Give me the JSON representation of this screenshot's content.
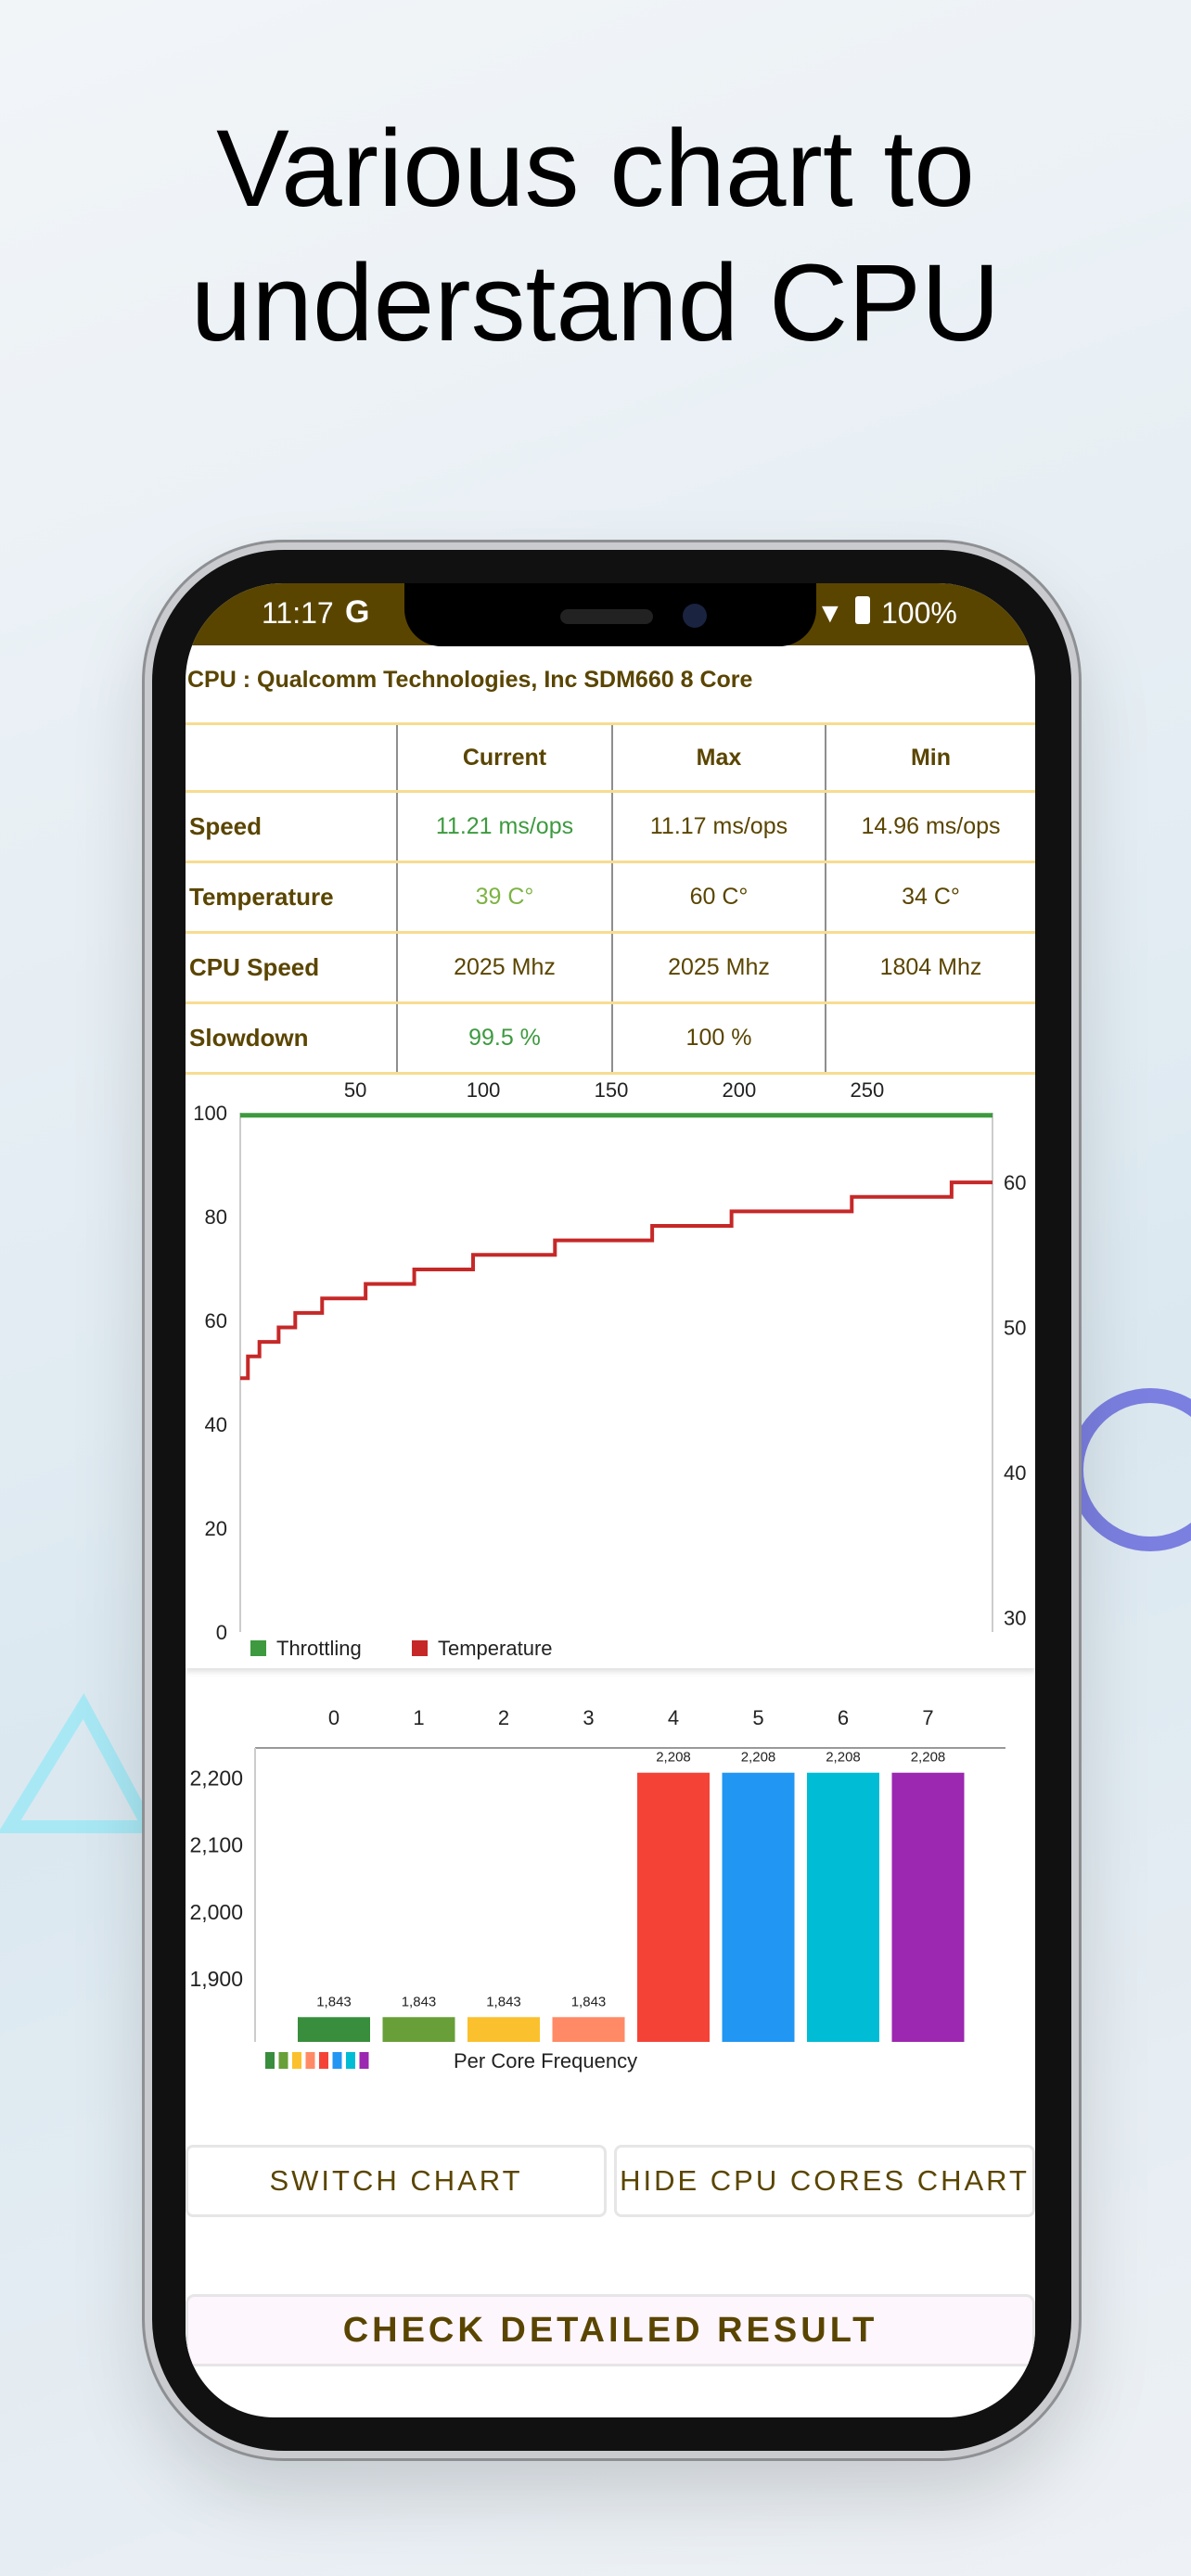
{
  "headline": {
    "line1": "Various chart to",
    "line2": "understand CPU"
  },
  "status_bar": {
    "time": "11:17",
    "google_icon": "G",
    "battery": "100%",
    "icons": [
      "wifi-icon",
      "battery-charging-icon"
    ]
  },
  "cpu_title": "CPU : Qualcomm Technologies, Inc SDM660 8 Core",
  "table": {
    "headers": [
      "",
      "Current",
      "Max",
      "Min"
    ],
    "rows": [
      {
        "label": "Speed",
        "current": "11.21 ms/ops",
        "max": "11.17 ms/ops",
        "min": "14.96 ms/ops"
      },
      {
        "label": "Temperature",
        "current": "39 C°",
        "max": "60 C°",
        "min": "34 C°"
      },
      {
        "label": "CPU Speed",
        "current": "2025 Mhz",
        "max": "2025 Mhz",
        "min": "1804 Mhz"
      },
      {
        "label": "Slowdown",
        "current": "99.5 %",
        "max": "100 %",
        "min": ""
      }
    ],
    "colors": {
      "text": "#5a4500",
      "good": "#3d9a3f",
      "temp_current": "#7cb342",
      "border": "#f7dc91"
    }
  },
  "chart_data": [
    {
      "type": "line",
      "x_ticks": [
        "50",
        "100",
        "150",
        "200",
        "250"
      ],
      "x_tick_values": [
        50,
        100,
        150,
        200,
        250
      ],
      "xlim": [
        5,
        299
      ],
      "y_left_ticks": [
        "0",
        "20",
        "40",
        "60",
        "80",
        "100"
      ],
      "ylim_left": [
        0,
        100
      ],
      "y_right_ticks": [
        "30",
        "40",
        "50",
        "60"
      ],
      "ylim_right": [
        29,
        64.8
      ],
      "grid": false,
      "legend": "bottom-left",
      "series": [
        {
          "name": "Throttling",
          "axis": "left",
          "color": "#3d9a3f",
          "points": [
            [
              5,
              99.5
            ],
            [
              299,
              99.5
            ]
          ]
        },
        {
          "name": "Temperature",
          "axis": "right",
          "color": "#c62828",
          "step": true,
          "points": [
            [
              5,
              46.5
            ],
            [
              8,
              48
            ],
            [
              12.5,
              49
            ],
            [
              20,
              50
            ],
            [
              26.5,
              51
            ],
            [
              37,
              52
            ],
            [
              54,
              53
            ],
            [
              73,
              54
            ],
            [
              96,
              55
            ],
            [
              128,
              56
            ],
            [
              166,
              57
            ],
            [
              197,
              58
            ],
            [
              244,
              59
            ],
            [
              283,
              60
            ],
            [
              299,
              60
            ]
          ]
        }
      ]
    },
    {
      "type": "bar",
      "categories": [
        "0",
        "1",
        "2",
        "3",
        "4",
        "5",
        "6",
        "7"
      ],
      "values": [
        1843,
        1843,
        1843,
        1843,
        2208,
        2208,
        2208,
        2208
      ],
      "data_labels": [
        "1,843",
        "1,843",
        "1,843",
        "1,843",
        "2,208",
        "2,208",
        "2,208",
        "2,208"
      ],
      "colors": [
        "#388e3c",
        "#689f38",
        "#fbc02d",
        "#ff8a65",
        "#f44336",
        "#2196f3",
        "#00bcd4",
        "#9c27b0"
      ],
      "y_ticks": [
        "1,900",
        "2,000",
        "2,100",
        "2,200"
      ],
      "y_tick_values": [
        1900,
        2000,
        2100,
        2200
      ],
      "ylim": [
        1806,
        2245
      ],
      "legend": "bottom-left",
      "legend_label": "Per Core Frequency"
    }
  ],
  "buttons": {
    "switch": "SWITCH CHART",
    "hide": "HIDE CPU CORES CHART",
    "check": "CHECK DETAILED RESULT"
  }
}
